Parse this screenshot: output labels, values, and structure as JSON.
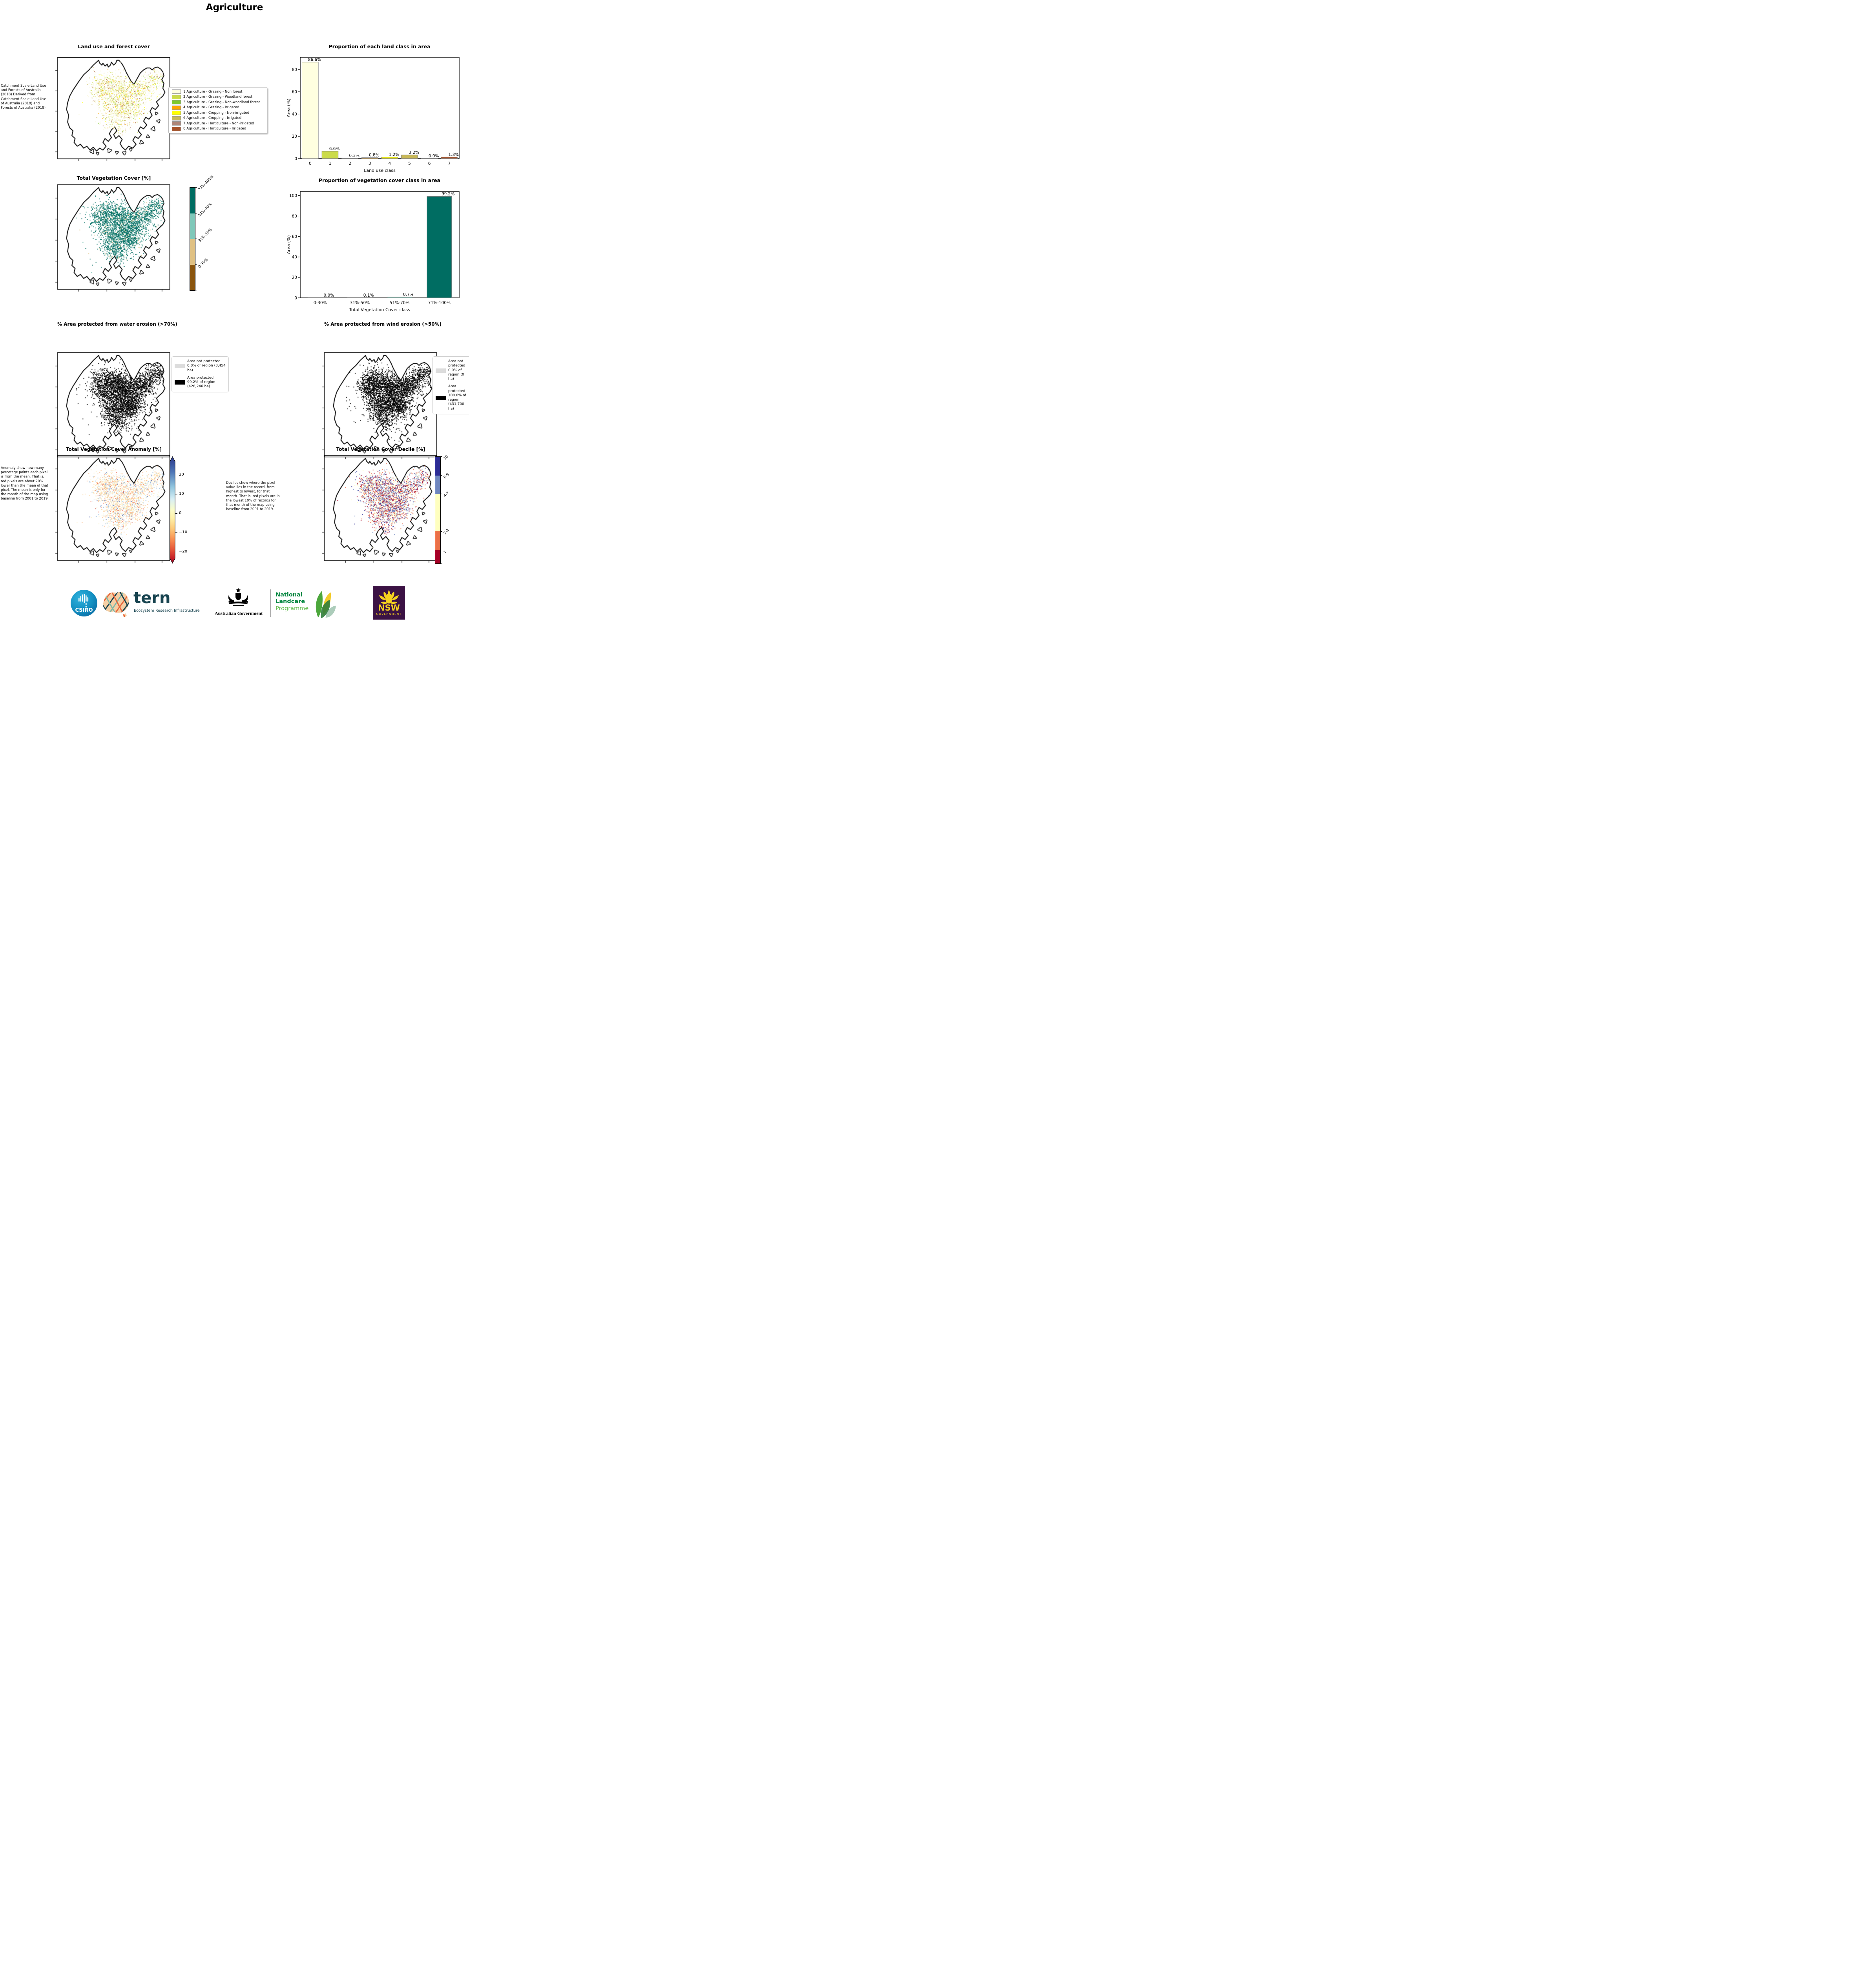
{
  "page": {
    "title": "Agriculture"
  },
  "maps": {
    "land_use": {
      "title": "Land use and forest cover",
      "annotation": " Catchment Scale Land Use and Forests of Australia (2018) Derived from Catchment Scale Land Use of Australia (2018) and Forests of Australia (2018)",
      "legend": [
        {
          "label": "1 Agriculture - Grazing - Non forest",
          "color": "#FFFFE0"
        },
        {
          "label": "2 Agriculture - Grazing - Woodland forest",
          "color": "#CBDB4A"
        },
        {
          "label": "3 Agriculture - Grazing - Non-woodland forest",
          "color": "#7FC92E"
        },
        {
          "label": "4 Agriculture - Grazing - Irrigated",
          "color": "#FFA500"
        },
        {
          "label": "5 Agriculture - Cropping - Non-irrigated",
          "color": "#FFFF00"
        },
        {
          "label": "6 Agriculture - Cropping - Irrigated",
          "color": "#C9B957"
        },
        {
          "label": "7 Agriculture - Horticulture - Non-irrigated",
          "color": "#AF8678"
        },
        {
          "label": "8 Agriculture - Horticulture - Irrigated",
          "color": "#A5522B"
        }
      ]
    },
    "veg_cover": {
      "title": "Total Vegetation Cover [%]",
      "colorbar": [
        {
          "label": "71%-100%",
          "color": "#006D62"
        },
        {
          "label": "51%-70%",
          "color": "#7FC8B9"
        },
        {
          "label": "31%-50%",
          "color": "#E0C183"
        },
        {
          "label": "0-30%",
          "color": "#8A550E"
        }
      ]
    },
    "water_erosion": {
      "title": "% Area protected from water erosion (>70%)",
      "legend": [
        {
          "label": "Area not protected 0.8% of region (3,454 ha)",
          "color": "#DCDCDC"
        },
        {
          "label": "Area protected 99.2% of region (428,246 ha)",
          "color": "#000000"
        }
      ]
    },
    "wind_erosion": {
      "title": "% Area protected from wind erosion (>50%)",
      "legend": [
        {
          "label": "Area not protected 0.0% of region (0 ha)",
          "color": "#DCDCDC"
        },
        {
          "label": "Area protected 100.0% of region (431,700 ha)",
          "color": "#000000"
        }
      ]
    },
    "anomaly": {
      "title": "Total Vegetation Cover Anomaly [%]",
      "annotation": "Anomaly show how many percetage points each pixel is from the mean. That is, red pixels are about 20% lower than the mean of that pixel. The mean is only for the month of the map using baseline from 2001 to 2019.",
      "colorbar_ticks": [
        "20",
        "10",
        "0",
        "−10",
        "−20"
      ]
    },
    "decile": {
      "title": "Total Vegetation Cover Decile [%]",
      "annotation": "Deciles show where the pixel value lies in the record, from highest to lowest, for that month. That is, red pixels are in the lowest 10% of records for that month of the map using baseline from 2001 to 2019.",
      "colorbar": [
        {
          "label": "10",
          "color": "#2C2C94",
          "h": 17.5
        },
        {
          "label": "8-9",
          "color": "#6F86BE",
          "h": 17.5
        },
        {
          "label": "4-7",
          "color": "#FFFFBF",
          "h": 35
        },
        {
          "label": "2-3",
          "color": "#EA7148",
          "h": 17.5
        },
        {
          "label": "1",
          "color": "#A50026",
          "h": 12.5
        }
      ]
    }
  },
  "chart_data": [
    {
      "type": "bar",
      "title": "Proportion of each land class in area",
      "xlabel": "Land use class",
      "ylabel": "Area (%)",
      "categories": [
        "0",
        "1",
        "2",
        "3",
        "4",
        "5",
        "6",
        "7"
      ],
      "values": [
        86.6,
        6.6,
        0.3,
        0.8,
        1.2,
        3.2,
        0.0,
        1.3
      ],
      "labels": [
        "86.6%",
        "6.6%",
        "0.3%",
        "0.8%",
        "1.2%",
        "3.2%",
        "0.0%",
        "1.3%"
      ],
      "colors": [
        "#FFFFE0",
        "#CBDB4A",
        "#7FC92E",
        "#FFA500",
        "#FFFF00",
        "#C9B957",
        "#AF8678",
        "#A5522B"
      ],
      "ylim": [
        0,
        91
      ],
      "yticks": [
        0,
        20,
        40,
        60,
        80
      ],
      "grid": false,
      "legend_position": "none"
    },
    {
      "type": "bar",
      "title": "Proportion of vegetation cover class in area",
      "xlabel": "Total Vegetation Cover class",
      "ylabel": "Area (%)",
      "categories": [
        "0-30%",
        "31%-50%",
        "51%-70%",
        "71%-100%"
      ],
      "values": [
        0.0,
        0.1,
        0.7,
        99.2
      ],
      "labels": [
        "0.0%",
        "0.1%",
        "0.7%",
        "99.2%"
      ],
      "colors": [
        "#8A550E",
        "#E0C183",
        "#7FC8B9",
        "#006D62"
      ],
      "ylim": [
        0,
        104
      ],
      "yticks": [
        0,
        20,
        40,
        60,
        80,
        100
      ],
      "grid": false,
      "legend_position": "none"
    }
  ],
  "footer": {
    "csiro_label": "CSIRO",
    "tern_label": "tern",
    "tern_subtitle": "Ecosystem Research Infrastructure",
    "aus_gov_label": "Australian Government",
    "landcare_line1": "National",
    "landcare_line2": "Landcare",
    "landcare_line3": "Programme",
    "nsw_label": "NSW",
    "nsw_sublabel": "GOVERNMENT"
  }
}
